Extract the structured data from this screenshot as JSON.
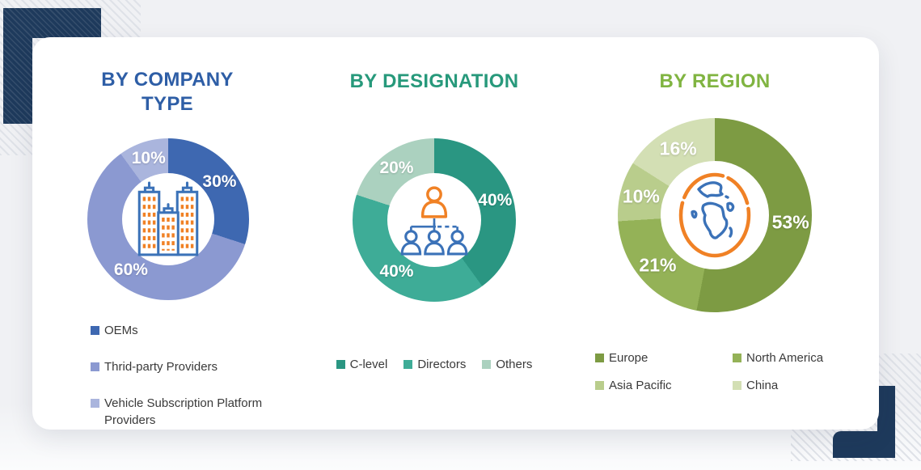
{
  "chart_data": [
    {
      "type": "donut",
      "title": "BY COMPANY TYPE",
      "title_color": "#2e5ea6",
      "center_icon": "buildings-icon",
      "legend_position": "vertical-below-left",
      "segments": [
        {
          "label": "OEMs",
          "value": 30,
          "color": "#3e68b1"
        },
        {
          "label": "Thrid-party Providers",
          "value": 60,
          "color": "#8b99d1"
        },
        {
          "label": "Vehicle Subscription Platform Providers",
          "value": 10,
          "color": "#aab5dd"
        }
      ]
    },
    {
      "type": "donut",
      "title": "BY DESIGNATION",
      "title_color": "#27997b",
      "center_icon": "org-chart-icon",
      "legend_position": "horizontal-below",
      "segments": [
        {
          "label": "C-level",
          "value": 40,
          "color": "#2a9682"
        },
        {
          "label": "Directors",
          "value": 40,
          "color": "#3eac97"
        },
        {
          "label": "Others",
          "value": 20,
          "color": "#abd1bf"
        }
      ]
    },
    {
      "type": "donut",
      "title": "BY REGION",
      "title_color": "#80b441",
      "center_icon": "globe-icon",
      "legend_position": "grid-below",
      "segments": [
        {
          "label": "Europe",
          "value": 53,
          "color": "#7d9b43"
        },
        {
          "label": "North America",
          "value": 21,
          "color": "#94b257"
        },
        {
          "label": "Asia Pacific",
          "value": 10,
          "color": "#b9cd8c"
        },
        {
          "label": "China",
          "value": 16,
          "color": "#d3dfb4"
        }
      ]
    }
  ],
  "decor": {
    "navy": "#1e3a5c",
    "card_background": "#ffffff",
    "icon_orange": "#f08125",
    "icon_blue": "#3b72b8"
  }
}
